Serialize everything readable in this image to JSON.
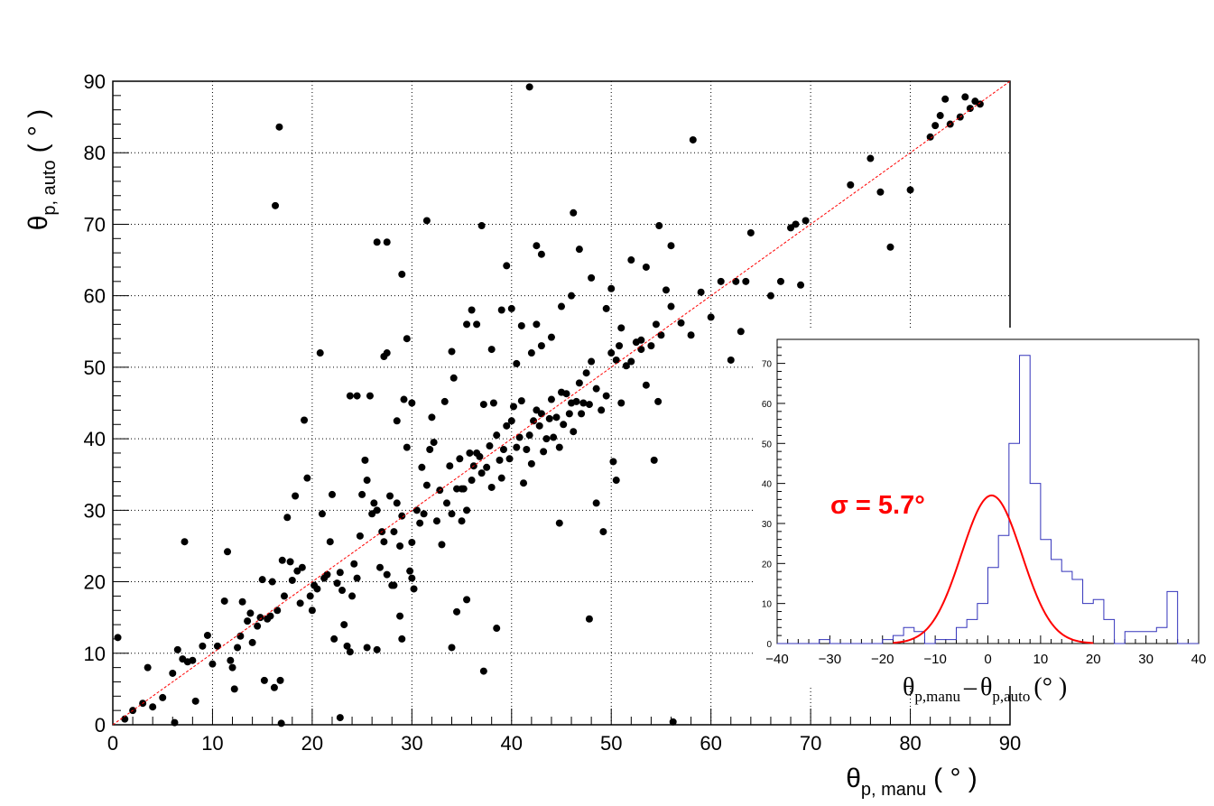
{
  "chart_data": [
    {
      "type": "scatter",
      "title": "",
      "xlabel": {
        "main": "θ",
        "sub": "p, manu",
        "unit": "( ° )"
      },
      "ylabel": {
        "main": "θ",
        "sub": "p, auto",
        "unit": "( ° )"
      },
      "xlim": [
        0,
        90
      ],
      "ylim": [
        0,
        90
      ],
      "xticks": [
        "0",
        "10",
        "20",
        "30",
        "40",
        "50",
        "60",
        "70",
        "80",
        "90"
      ],
      "yticks": [
        "0",
        "10",
        "20",
        "30",
        "40",
        "50",
        "60",
        "70",
        "80",
        "90"
      ],
      "grid": true,
      "reference_line": {
        "label": "",
        "from": [
          0,
          0
        ],
        "to": [
          90,
          90
        ],
        "color": "#ff0000",
        "style": "dashed"
      },
      "marker_color": "#000000",
      "points": [
        [
          0.5,
          12.2
        ],
        [
          1.2,
          0.8
        ],
        [
          2,
          2
        ],
        [
          3,
          3
        ],
        [
          3.5,
          8
        ],
        [
          4,
          2.5
        ],
        [
          5,
          3.8
        ],
        [
          6,
          7.2
        ],
        [
          6.2,
          0.3
        ],
        [
          6.5,
          10.5
        ],
        [
          7,
          9.2
        ],
        [
          7.2,
          25.6
        ],
        [
          7.5,
          8.8
        ],
        [
          8,
          9
        ],
        [
          8.3,
          3.3
        ],
        [
          9,
          11
        ],
        [
          9.5,
          12.5
        ],
        [
          10,
          8.5
        ],
        [
          10.5,
          11
        ],
        [
          11.2,
          17.3
        ],
        [
          11.5,
          24.2
        ],
        [
          11.8,
          9
        ],
        [
          12,
          8
        ],
        [
          12.2,
          5
        ],
        [
          12.5,
          10.8
        ],
        [
          12.8,
          12.4
        ],
        [
          13,
          17.2
        ],
        [
          13.5,
          14.5
        ],
        [
          13.8,
          15.6
        ],
        [
          14,
          11.5
        ],
        [
          14.5,
          13.8
        ],
        [
          14.8,
          15
        ],
        [
          15,
          20.3
        ],
        [
          15.2,
          6.2
        ],
        [
          15.5,
          14.8
        ],
        [
          15.8,
          15.2
        ],
        [
          16,
          20
        ],
        [
          16.2,
          5.2
        ],
        [
          16.3,
          72.6
        ],
        [
          16.5,
          16
        ],
        [
          16.7,
          83.6
        ],
        [
          16.8,
          6.2
        ],
        [
          16.9,
          0.2
        ],
        [
          17,
          23
        ],
        [
          17.2,
          18
        ],
        [
          17.5,
          29
        ],
        [
          17.8,
          22.8
        ],
        [
          18,
          20.2
        ],
        [
          18.3,
          32
        ],
        [
          18.5,
          21.5
        ],
        [
          18.8,
          17
        ],
        [
          19,
          22
        ],
        [
          19.2,
          42.6
        ],
        [
          19.5,
          34.5
        ],
        [
          19.8,
          18
        ],
        [
          20,
          16
        ],
        [
          20.2,
          19.5
        ],
        [
          20.5,
          19
        ],
        [
          20.8,
          52
        ],
        [
          21,
          29.5
        ],
        [
          21.2,
          20.5
        ],
        [
          21.5,
          21
        ],
        [
          21.8,
          25.6
        ],
        [
          22,
          32.2
        ],
        [
          22.2,
          12
        ],
        [
          22.5,
          19.8
        ],
        [
          22.8,
          21.3
        ],
        [
          23,
          18.8
        ],
        [
          23.2,
          14
        ],
        [
          23.5,
          11
        ],
        [
          23.8,
          10.2
        ],
        [
          24,
          18
        ],
        [
          24.2,
          22.5
        ],
        [
          24.5,
          20.5
        ],
        [
          24.8,
          26.4
        ],
        [
          25,
          32.2
        ],
        [
          25.3,
          37
        ],
        [
          25.5,
          34.2
        ],
        [
          25.8,
          46
        ],
        [
          26,
          29.5
        ],
        [
          26.2,
          31
        ],
        [
          26.5,
          30
        ],
        [
          26.8,
          22
        ],
        [
          27,
          27
        ],
        [
          27.2,
          25.6
        ],
        [
          27.5,
          21
        ],
        [
          27.8,
          32
        ],
        [
          28,
          19.5
        ],
        [
          28.2,
          27
        ],
        [
          28.5,
          31
        ],
        [
          28.8,
          25
        ],
        [
          29,
          29.2
        ],
        [
          29.2,
          45.5
        ],
        [
          29.5,
          38.8
        ],
        [
          29.8,
          21.5
        ],
        [
          30,
          25.5
        ],
        [
          30.2,
          19
        ],
        [
          30.5,
          30
        ],
        [
          30.8,
          28.2
        ],
        [
          31,
          36
        ],
        [
          31.2,
          29.5
        ],
        [
          31.5,
          33.5
        ],
        [
          31.8,
          38.5
        ],
        [
          32,
          43
        ],
        [
          32.2,
          39.5
        ],
        [
          32.5,
          28.5
        ],
        [
          32.8,
          32.8
        ],
        [
          33,
          25.2
        ],
        [
          33.3,
          45.2
        ],
        [
          33.5,
          31
        ],
        [
          33.8,
          36.2
        ],
        [
          34,
          29.5
        ],
        [
          34.2,
          48.5
        ],
        [
          34.5,
          33
        ],
        [
          34.8,
          37.2
        ],
        [
          35,
          28.5
        ],
        [
          35.2,
          33
        ],
        [
          35.5,
          30
        ],
        [
          35.8,
          38
        ],
        [
          36,
          34.2
        ],
        [
          36.2,
          36.2
        ],
        [
          36.5,
          38
        ],
        [
          36.8,
          37.5
        ],
        [
          37,
          35.2
        ],
        [
          37.2,
          44.8
        ],
        [
          37.5,
          36
        ],
        [
          37.8,
          39
        ],
        [
          38,
          33.2
        ],
        [
          38.2,
          45
        ],
        [
          38.5,
          40.5
        ],
        [
          38.8,
          37
        ],
        [
          39,
          34.5
        ],
        [
          39.2,
          38.5
        ],
        [
          39.5,
          41.8
        ],
        [
          39.8,
          37.2
        ],
        [
          40,
          42.5
        ],
        [
          40.2,
          44.5
        ],
        [
          40.5,
          38.8
        ],
        [
          40.8,
          40.2
        ],
        [
          41,
          45.3
        ],
        [
          41.2,
          33.8
        ],
        [
          41.5,
          38.5
        ],
        [
          41.8,
          40.5
        ],
        [
          42,
          36.5
        ],
        [
          42.2,
          42.5
        ],
        [
          42.5,
          44
        ],
        [
          42.8,
          41.8
        ],
        [
          43,
          43.5
        ],
        [
          43.2,
          38.2
        ],
        [
          43.5,
          40
        ],
        [
          43.8,
          42.8
        ],
        [
          44,
          45.5
        ],
        [
          44.2,
          40.2
        ],
        [
          44.5,
          43
        ],
        [
          44.8,
          38.8
        ],
        [
          45,
          46.5
        ],
        [
          45.2,
          42
        ],
        [
          45.5,
          46.3
        ],
        [
          45.8,
          43.5
        ],
        [
          46,
          45
        ],
        [
          46.2,
          41
        ],
        [
          46.5,
          45.2
        ],
        [
          46.8,
          47.8
        ],
        [
          47,
          43.5
        ],
        [
          47.2,
          45
        ],
        [
          47.5,
          49.2
        ],
        [
          47.8,
          44.8
        ],
        [
          48,
          50.8
        ],
        [
          48.5,
          47
        ],
        [
          49,
          44
        ],
        [
          49.5,
          46
        ],
        [
          50,
          52
        ],
        [
          50.5,
          51
        ],
        [
          51,
          45
        ],
        [
          51.5,
          50.2
        ],
        [
          52,
          50.8
        ],
        [
          52.5,
          53.5
        ],
        [
          53,
          52.5
        ],
        [
          53.5,
          47.5
        ],
        [
          54,
          53
        ],
        [
          54.5,
          56
        ],
        [
          55,
          54.5
        ],
        [
          56,
          58.5
        ],
        [
          57,
          56.2
        ],
        [
          58,
          54.5
        ],
        [
          59,
          60.5
        ],
        [
          60,
          57
        ],
        [
          61,
          62
        ],
        [
          62,
          51
        ],
        [
          62.5,
          62
        ],
        [
          63,
          55
        ],
        [
          63.5,
          62
        ],
        [
          64,
          68.8
        ],
        [
          66,
          60
        ],
        [
          67,
          62
        ],
        [
          68,
          69.5
        ],
        [
          68.5,
          70
        ],
        [
          69,
          61.5
        ],
        [
          69.5,
          70.5
        ],
        [
          74,
          75.5
        ],
        [
          76,
          79.2
        ],
        [
          77,
          74.5
        ],
        [
          78,
          66.8
        ],
        [
          80,
          74.8
        ],
        [
          82,
          82.2
        ],
        [
          82.5,
          83.8
        ],
        [
          83,
          85.2
        ],
        [
          83.5,
          87.5
        ],
        [
          84,
          84
        ],
        [
          85,
          85
        ],
        [
          85.5,
          87.8
        ],
        [
          86,
          86.2
        ],
        [
          86.5,
          87.2
        ],
        [
          87,
          86.8
        ],
        [
          26.5,
          67.5
        ],
        [
          27.5,
          67.5
        ],
        [
          29,
          63
        ],
        [
          31.5,
          70.5
        ],
        [
          37,
          69.8
        ],
        [
          39.5,
          64.2
        ],
        [
          42.5,
          67
        ],
        [
          43,
          65.8
        ],
        [
          46.2,
          71.6
        ],
        [
          46.8,
          66.5
        ],
        [
          41.8,
          89.2
        ],
        [
          58.2,
          81.8
        ],
        [
          54.8,
          69.8
        ],
        [
          56,
          67
        ],
        [
          55.5,
          60.8
        ],
        [
          52,
          65
        ],
        [
          53.5,
          64
        ],
        [
          49.5,
          58.2
        ],
        [
          50,
          61
        ],
        [
          51,
          55.5
        ],
        [
          48,
          62.5
        ],
        [
          46,
          60
        ],
        [
          45,
          58.5
        ],
        [
          43,
          53
        ],
        [
          42,
          52
        ],
        [
          40.5,
          50.5
        ],
        [
          41,
          55.8
        ],
        [
          42.5,
          56
        ],
        [
          44,
          54.2
        ],
        [
          39,
          58
        ],
        [
          40,
          58.2
        ],
        [
          38,
          52.5
        ],
        [
          36.5,
          56
        ],
        [
          35.5,
          56
        ],
        [
          36,
          58
        ],
        [
          34,
          52.2
        ],
        [
          29.5,
          54
        ],
        [
          27.5,
          52
        ],
        [
          27.2,
          51.5
        ],
        [
          24.5,
          46
        ],
        [
          23.8,
          46
        ],
        [
          28.5,
          42.5
        ],
        [
          30,
          45
        ],
        [
          35,
          33
        ],
        [
          35.5,
          17.5
        ],
        [
          34.5,
          15.8
        ],
        [
          34,
          10.8
        ],
        [
          38.5,
          13.5
        ],
        [
          37.2,
          7.5
        ],
        [
          47.8,
          14.8
        ],
        [
          48.5,
          31
        ],
        [
          49.2,
          27
        ],
        [
          44.8,
          28.2
        ],
        [
          50.2,
          36.8
        ],
        [
          50.5,
          34.2
        ],
        [
          54.3,
          37
        ],
        [
          54.7,
          45.2
        ],
        [
          50.8,
          53
        ],
        [
          53,
          53.8
        ],
        [
          56.2,
          0.4
        ],
        [
          22.8,
          1
        ],
        [
          28.8,
          15.2
        ],
        [
          28.2,
          19.5
        ],
        [
          25.5,
          10.8
        ],
        [
          26.5,
          10.5
        ],
        [
          29,
          12
        ],
        [
          30,
          20.5
        ]
      ]
    },
    {
      "type": "histogram",
      "title": "",
      "xlabel": {
        "main": "θ",
        "sub_a": "p,manu",
        "op": "–",
        "sub_b": "p,auto",
        "unit": "(°  )"
      },
      "ylabel": "",
      "xlim": [
        -40,
        40
      ],
      "ylim": [
        0,
        76
      ],
      "xticks": [
        "−40",
        "−30",
        "−20",
        "−10",
        "0",
        "10",
        "20",
        "30",
        "40"
      ],
      "yticks": [
        "0",
        "10",
        "20",
        "30",
        "40",
        "50",
        "60",
        "70"
      ],
      "bin_width": 2,
      "bin_edges_start": -40,
      "counts": [
        0,
        0,
        0,
        0,
        1,
        0,
        0,
        0,
        0,
        0,
        1,
        2,
        4,
        3,
        0,
        1,
        1,
        4,
        6,
        10,
        19,
        27,
        50,
        72,
        40,
        26,
        21,
        18,
        16,
        10,
        11,
        6,
        0,
        3,
        3,
        3,
        4,
        13,
        0,
        0
      ],
      "line_color": "#3333bb",
      "fit": {
        "type": "gaussian",
        "mean": 0.7,
        "sigma": 5.7,
        "amplitude": 37,
        "color": "#ff0000"
      },
      "annotation": "σ = 5.7°"
    }
  ]
}
